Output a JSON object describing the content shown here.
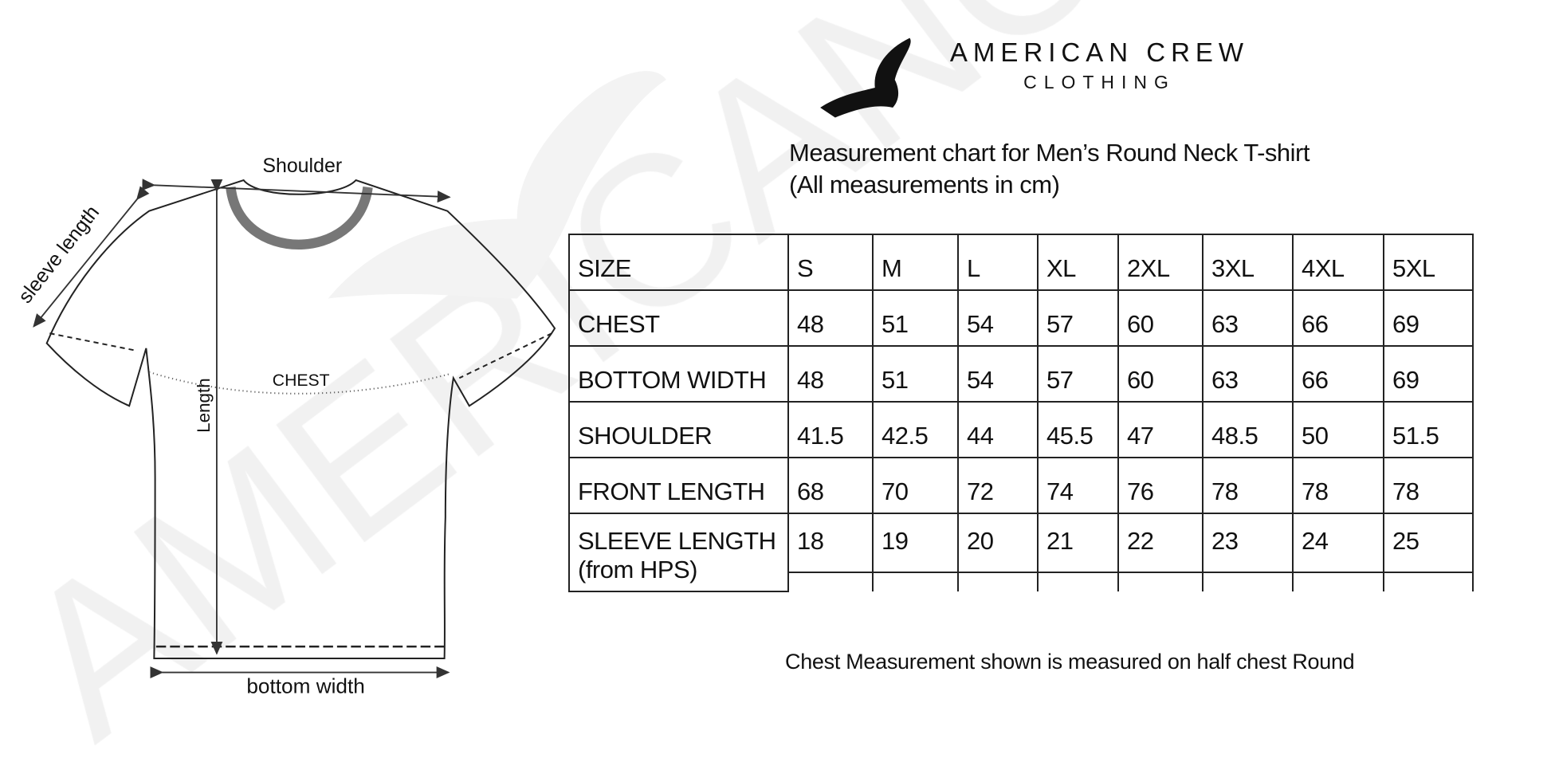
{
  "brand": {
    "name": "AMERICAN CREW",
    "sub": "CLOTHING",
    "watermark": "AMERICANCREW"
  },
  "title": {
    "line1": "Measurement chart for Men’s Round Neck T-shirt",
    "line2": "(All measurements in cm)"
  },
  "diagram": {
    "shoulder": "Shoulder",
    "sleeve": "sleeve length",
    "chest": "CHEST",
    "length": "Length",
    "bottom": "bottom width"
  },
  "table": {
    "header": [
      "SIZE",
      "S",
      "M",
      "L",
      "XL",
      "2XL",
      "3XL",
      "4XL",
      "5XL"
    ],
    "rows": [
      {
        "label": "CHEST",
        "values": [
          "48",
          "51",
          "54",
          "57",
          "60",
          "63",
          "66",
          "69"
        ]
      },
      {
        "label": "BOTTOM WIDTH",
        "values": [
          "48",
          "51",
          "54",
          "57",
          "60",
          "63",
          "66",
          "69"
        ]
      },
      {
        "label": "SHOULDER",
        "values": [
          "41.5",
          "42.5",
          "44",
          "45.5",
          "47",
          "48.5",
          "50",
          "51.5"
        ]
      },
      {
        "label": "FRONT LENGTH",
        "values": [
          "68",
          "70",
          "72",
          "74",
          "76",
          "78",
          "78",
          "78"
        ]
      },
      {
        "label": "SLEEVE LENGTH",
        "label2": "(from HPS)",
        "values": [
          "18",
          "19",
          "20",
          "21",
          "22",
          "23",
          "24",
          "25"
        ]
      }
    ]
  },
  "note": "Chest Measurement shown is measured on half chest Round"
}
